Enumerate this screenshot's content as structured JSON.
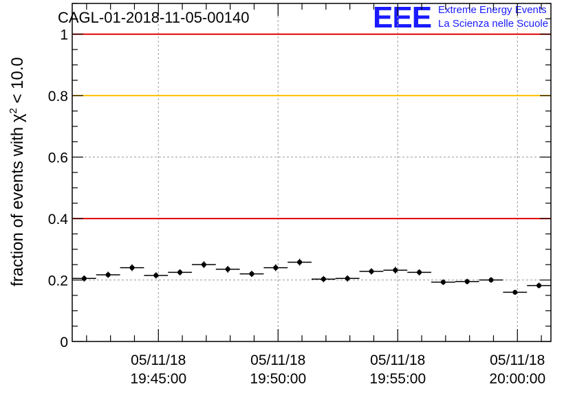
{
  "header": {
    "title": "CAGL-01-2018-11-05-00140",
    "logo": {
      "mark": "EEE",
      "line1": "Extreme Energy Events",
      "line2": "La Scienza nelle Scuole"
    }
  },
  "colors": {
    "red_line": "#e60000",
    "yellow_line": "#ffbf00",
    "grid": "#9a9a9a",
    "logo": "#1a1aff"
  },
  "chart_data": {
    "type": "scatter",
    "ylabel_text": "fraction of events with χ",
    "ylabel_sup": "2",
    "ylabel_rest": " < 10.0",
    "ylim": [
      0,
      1.1
    ],
    "xlim_minutes": [
      -3.6,
      16.4
    ],
    "grid": true,
    "y_ticks": [
      {
        "value": 0,
        "label": "0"
      },
      {
        "value": 0.2,
        "label": "0.2"
      },
      {
        "value": 0.4,
        "label": "0.4"
      },
      {
        "value": 0.6,
        "label": "0.6"
      },
      {
        "value": 0.8,
        "label": "0.8"
      },
      {
        "value": 1,
        "label": "1"
      }
    ],
    "x_ticks": [
      {
        "minutes": 0,
        "date": "05/11/18",
        "time": "19:45:00"
      },
      {
        "minutes": 5,
        "date": "05/11/18",
        "time": "19:50:00"
      },
      {
        "minutes": 10,
        "date": "05/11/18",
        "time": "19:55:00"
      },
      {
        "minutes": 15,
        "date": "05/11/18",
        "time": "20:00:00"
      }
    ],
    "reference_lines": [
      {
        "y": 1.0,
        "color": "#e60000"
      },
      {
        "y": 0.8,
        "color": "#ffbf00"
      },
      {
        "y": 0.4,
        "color": "#e60000"
      }
    ],
    "bin_width_minutes": 1,
    "points_minutes": [
      -3.1,
      -2.1,
      -1.1,
      -0.1,
      0.9,
      1.9,
      2.9,
      3.9,
      4.9,
      5.9,
      6.9,
      7.9,
      8.9,
      9.9,
      10.9,
      11.9,
      12.9,
      13.9,
      14.9,
      15.9
    ],
    "values": [
      0.205,
      0.217,
      0.24,
      0.215,
      0.225,
      0.25,
      0.235,
      0.22,
      0.24,
      0.258,
      0.203,
      0.205,
      0.228,
      0.232,
      0.225,
      0.193,
      0.195,
      0.2,
      0.16,
      0.182
    ],
    "errors": [
      0.01,
      0.01,
      0.011,
      0.01,
      0.01,
      0.011,
      0.011,
      0.01,
      0.011,
      0.011,
      0.01,
      0.01,
      0.01,
      0.011,
      0.01,
      0.009,
      0.009,
      0.009,
      0.008,
      0.009
    ]
  }
}
